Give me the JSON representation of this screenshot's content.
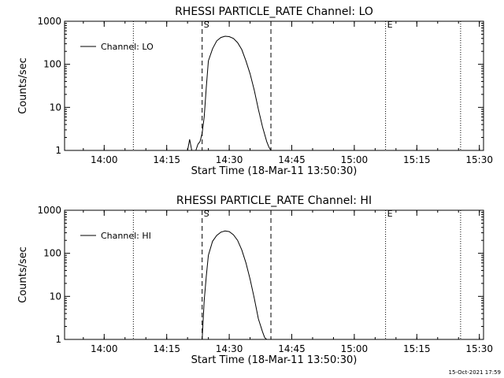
{
  "chart_data": [
    {
      "type": "line",
      "title": "RHESSI PARTICLE_RATE Channel: LO",
      "xlabel": "Start Time (18-Mar-11 13:50:30)",
      "ylabel": "Counts/sec",
      "xlim": [
        "13:50:30",
        "15:31:00"
      ],
      "ylim": [
        1,
        1000
      ],
      "yscale": "log",
      "grid": false,
      "legend": "top-left",
      "x_ticks": [
        "14:00",
        "14:15",
        "14:30",
        "14:45",
        "15:00",
        "15:15",
        "15:30"
      ],
      "y_ticks": [
        "1",
        "10",
        "100",
        "1000"
      ],
      "markers": [
        {
          "label": "S",
          "time": "14:23:30",
          "style": "dashed"
        },
        {
          "label": "",
          "time": "14:40:00",
          "style": "dashed"
        },
        {
          "label": "E",
          "time": "15:07:30",
          "style": "dotted"
        },
        {
          "label": "",
          "time": "14:07:00",
          "style": "dotted"
        },
        {
          "label": "",
          "time": "15:25:30",
          "style": "dotted"
        }
      ],
      "series": [
        {
          "name": "Channel: LO",
          "x": [
            "14:20:00",
            "14:20:30",
            "14:21:00",
            "14:21:30",
            "14:22:00",
            "14:22:30",
            "14:23:00",
            "14:23:30",
            "14:24:00",
            "14:24:30",
            "14:25:00",
            "14:26:00",
            "14:27:00",
            "14:28:00",
            "14:29:00",
            "14:30:00",
            "14:31:00",
            "14:32:00",
            "14:33:00",
            "14:34:00",
            "14:35:00",
            "14:36:00",
            "14:37:00",
            "14:38:00",
            "14:39:00",
            "14:39:30",
            "14:40:00"
          ],
          "values": [
            1.0,
            1.8,
            1.0,
            1.0,
            1.0,
            1.4,
            1.6,
            2.5,
            6,
            30,
            120,
            230,
            350,
            420,
            450,
            440,
            400,
            320,
            220,
            120,
            60,
            25,
            9,
            3.5,
            1.6,
            1.2,
            1.0
          ]
        }
      ]
    },
    {
      "type": "line",
      "title": "RHESSI PARTICLE_RATE Channel: HI",
      "xlabel": "Start Time (18-Mar-11 13:50:30)",
      "ylabel": "Counts/sec",
      "xlim": [
        "13:50:30",
        "15:31:00"
      ],
      "ylim": [
        1,
        1000
      ],
      "yscale": "log",
      "grid": false,
      "legend": "top-left",
      "x_ticks": [
        "14:00",
        "14:15",
        "14:30",
        "14:45",
        "15:00",
        "15:15",
        "15:30"
      ],
      "y_ticks": [
        "1",
        "10",
        "100",
        "1000"
      ],
      "markers": [
        {
          "label": "S",
          "time": "14:23:30",
          "style": "dashed"
        },
        {
          "label": "",
          "time": "14:40:00",
          "style": "dashed"
        },
        {
          "label": "E",
          "time": "15:07:30",
          "style": "dotted"
        },
        {
          "label": "",
          "time": "14:07:00",
          "style": "dotted"
        },
        {
          "label": "",
          "time": "15:25:30",
          "style": "dotted"
        }
      ],
      "series": [
        {
          "name": "Channel: HI",
          "x": [
            "14:23:30",
            "14:24:00",
            "14:24:30",
            "14:25:00",
            "14:26:00",
            "14:27:00",
            "14:28:00",
            "14:29:00",
            "14:30:00",
            "14:31:00",
            "14:32:00",
            "14:33:00",
            "14:34:00",
            "14:35:00",
            "14:36:00",
            "14:37:00",
            "14:38:00",
            "14:38:30",
            "14:39:00"
          ],
          "values": [
            1.0,
            8,
            30,
            90,
            190,
            260,
            310,
            330,
            320,
            270,
            200,
            120,
            60,
            25,
            9,
            3,
            1.5,
            1.1,
            1.0
          ]
        }
      ]
    }
  ],
  "footer": {
    "timestamp": "15-Oct-2021 17:59"
  }
}
